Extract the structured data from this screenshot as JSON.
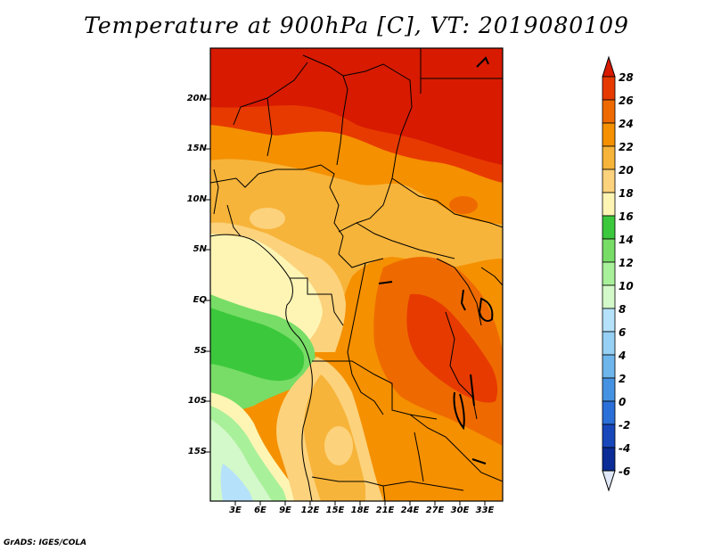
{
  "title": "Temperature at 900hPa [C], VT: 2019080109",
  "credit": "GrADS: IGES/COLA",
  "map": {
    "lat_labels": [
      "20N",
      "15N",
      "10N",
      "5N",
      "EQ",
      "5S",
      "10S",
      "15S"
    ],
    "lon_labels": [
      "3E",
      "6E",
      "9E",
      "12E",
      "15E",
      "18E",
      "21E",
      "24E",
      "27E",
      "30E",
      "33E"
    ]
  },
  "colorbar": {
    "levels": [
      "28",
      "26",
      "24",
      "22",
      "20",
      "18",
      "16",
      "14",
      "12",
      "10",
      "8",
      "6",
      "4",
      "2",
      "0",
      "-2",
      "-4",
      "-6"
    ],
    "colors": [
      "#d71a00",
      "#e73a00",
      "#ee6a00",
      "#f59000",
      "#f7b43a",
      "#fcd27c",
      "#fef5b4",
      "#3cc83c",
      "#77dd66",
      "#a9f09a",
      "#d3f8c9",
      "#b5e1fa",
      "#96d0f4",
      "#6eb5ec",
      "#4692e2",
      "#2b6fd8",
      "#1846bb",
      "#0b2b96",
      "#0a1676"
    ],
    "overflow_top": "#d71a00",
    "overflow_bottom": "#e0e8f8"
  }
}
